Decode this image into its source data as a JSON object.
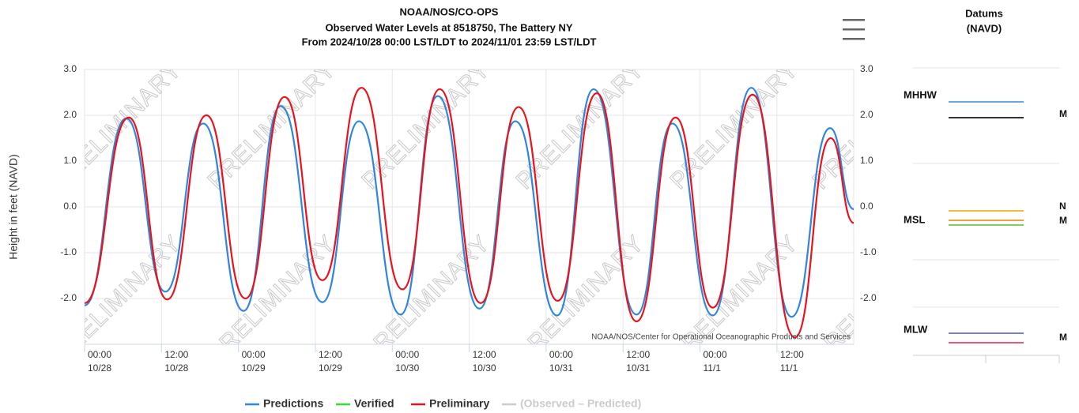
{
  "chart_data": {
    "type": "line",
    "title": [
      "NOAA/NOS/CO-OPS",
      "Observed Water Levels at 8518750, The Battery NY",
      "From 2024/10/28 00:00 LST/LDT to 2024/11/01 23:59 LST/LDT"
    ],
    "y_label": "Height in feet (NAVD)",
    "watermark": "PRELIMINARY",
    "credits": "NOAA/NOS/Center for Operational Oceanographic Products and Services",
    "xlim": [
      "10/28 00:00",
      "11/1 23:59"
    ],
    "xticks": [
      {
        "value": "10/28 00:00",
        "label": [
          "00:00",
          "10/28"
        ]
      },
      {
        "value": "10/28 12:00",
        "label": [
          "12:00",
          "10/28"
        ]
      },
      {
        "value": "10/29 00:00",
        "label": [
          "00:00",
          "10/29"
        ]
      },
      {
        "value": "10/29 12:00",
        "label": [
          "12:00",
          "10/29"
        ]
      },
      {
        "value": "10/30 00:00",
        "label": [
          "00:00",
          "10/30"
        ]
      },
      {
        "value": "10/30 12:00",
        "label": [
          "12:00",
          "10/30"
        ]
      },
      {
        "value": "10/31 00:00",
        "label": [
          "00:00",
          "10/31"
        ]
      },
      {
        "value": "10/31 12:00",
        "label": [
          "12:00",
          "10/31"
        ]
      },
      {
        "value": "11/1 00:00",
        "label": [
          "00:00",
          "11/1"
        ]
      },
      {
        "value": "11/1 12:00",
        "label": [
          "12:00",
          "11/1"
        ]
      }
    ],
    "ylim": [
      -3,
      3
    ],
    "yticks": [
      {
        "value": 3,
        "label": "3.0"
      },
      {
        "value": 2,
        "label": "2.0"
      },
      {
        "value": 1,
        "label": "1.0"
      },
      {
        "value": 0,
        "label": "0.0"
      },
      {
        "value": -1,
        "label": "-1.0"
      },
      {
        "value": -2,
        "label": "-2.0"
      }
    ],
    "grid": true,
    "legend": "bottom",
    "series": [
      {
        "name": "Predictions",
        "color": "#2f86dc",
        "x": [
          "10/28 00:00",
          "10/28 06:30",
          "10/28 12:36",
          "10/28 18:30",
          "10/29 00:48",
          "10/29 06:36",
          "10/29 13:06",
          "10/29 18:48",
          "10/30 01:18",
          "10/30 07:06",
          "10/30 13:36",
          "10/30 19:12",
          "10/31 01:42",
          "10/31 07:24",
          "10/31 14:06",
          "10/31 19:42",
          "11/1 02:00",
          "11/1 08:00",
          "11/1 14:18",
          "11/1 20:18",
          "11/1 23:59"
        ],
        "values": [
          -2.15,
          1.93,
          -1.85,
          1.82,
          -2.27,
          2.2,
          -2.08,
          1.87,
          -2.35,
          2.42,
          -2.22,
          1.87,
          -2.37,
          2.57,
          -2.35,
          1.82,
          -2.37,
          2.6,
          -2.4,
          1.72,
          -0.05
        ]
      },
      {
        "name": "Verified",
        "color": "#33dd33",
        "x": [],
        "values": []
      },
      {
        "name": "Preliminary",
        "color": "#e8131c",
        "x": [
          "10/28 00:00",
          "10/28 06:54",
          "10/28 12:54",
          "10/28 19:00",
          "10/29 01:06",
          "10/29 07:12",
          "10/29 13:06",
          "10/29 19:12",
          "10/30 01:36",
          "10/30 07:24",
          "10/30 13:48",
          "10/30 19:42",
          "10/31 01:48",
          "10/31 07:54",
          "10/31 14:06",
          "10/31 20:12",
          "11/1 02:00",
          "11/1 08:12",
          "11/1 14:48",
          "11/1 20:24",
          "11/1 23:59"
        ],
        "values": [
          -2.1,
          1.95,
          -2.02,
          2.0,
          -2.0,
          2.4,
          -1.6,
          2.6,
          -1.8,
          2.57,
          -2.1,
          2.18,
          -2.05,
          2.48,
          -2.5,
          1.95,
          -2.2,
          2.45,
          -2.85,
          1.5,
          -0.35
        ]
      },
      {
        "name": "(Observed – Predicted)",
        "color": "#cccccc",
        "x": [],
        "values": []
      }
    ]
  },
  "datums": {
    "title": "Datums",
    "subtitle": "(NAVD)",
    "labels": [
      "MHHW",
      "MSL",
      "MLW"
    ],
    "cut_labels": [
      "M",
      "N",
      "M",
      "M"
    ]
  }
}
